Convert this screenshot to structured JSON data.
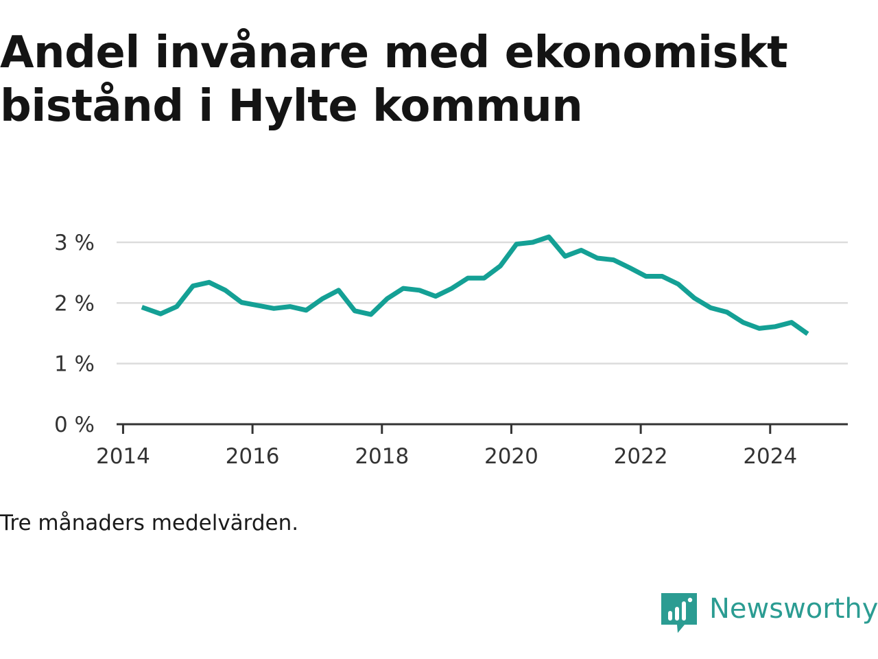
{
  "chart_data": {
    "type": "line",
    "title": "Andel invånare med ekonomiskt bistånd i Hylte kommun",
    "note": "Tre månaders medelvärden.",
    "x_unit": "year",
    "y_unit": "%",
    "xlim": [
      2013.9,
      2025.2
    ],
    "ylim": [
      0,
      3
    ],
    "x_ticks": [
      2014,
      2016,
      2018,
      2020,
      2022,
      2024
    ],
    "x_tick_labels": [
      "2014",
      "2016",
      "2018",
      "2020",
      "2022",
      "2024"
    ],
    "y_ticks": [
      0,
      1,
      2,
      3
    ],
    "y_tick_labels": [
      "0 %",
      "1 %",
      "2 %",
      "3 %"
    ],
    "grid": true,
    "series": [
      {
        "name": "Andel invånare med ekonomiskt bistånd",
        "color": "#14a095",
        "x": [
          2014.29,
          2014.58,
          2014.83,
          2015.08,
          2015.33,
          2015.58,
          2015.83,
          2016.08,
          2016.33,
          2016.58,
          2016.83,
          2017.08,
          2017.33,
          2017.58,
          2017.83,
          2018.08,
          2018.33,
          2018.58,
          2018.83,
          2019.08,
          2019.33,
          2019.58,
          2019.83,
          2020.08,
          2020.33,
          2020.58,
          2020.83,
          2021.08,
          2021.33,
          2021.58,
          2021.83,
          2022.08,
          2022.33,
          2022.58,
          2022.83,
          2023.08,
          2023.33,
          2023.58,
          2023.83,
          2024.08,
          2024.33,
          2024.58
        ],
        "values": [
          1.93,
          1.82,
          1.94,
          2.28,
          2.34,
          2.21,
          2.01,
          1.96,
          1.91,
          1.94,
          1.88,
          2.07,
          2.21,
          1.87,
          1.81,
          2.07,
          2.24,
          2.21,
          2.11,
          2.24,
          2.41,
          2.41,
          2.61,
          2.97,
          3.0,
          3.09,
          2.77,
          2.87,
          2.74,
          2.71,
          2.58,
          2.44,
          2.44,
          2.31,
          2.08,
          1.92,
          1.85,
          1.68,
          1.58,
          1.61,
          1.68,
          1.49
        ]
      }
    ]
  },
  "footer": {
    "brand_name": "Newsworthy",
    "brand_color": "#2b9c92",
    "brand_icon": "bar-chart-icon"
  }
}
